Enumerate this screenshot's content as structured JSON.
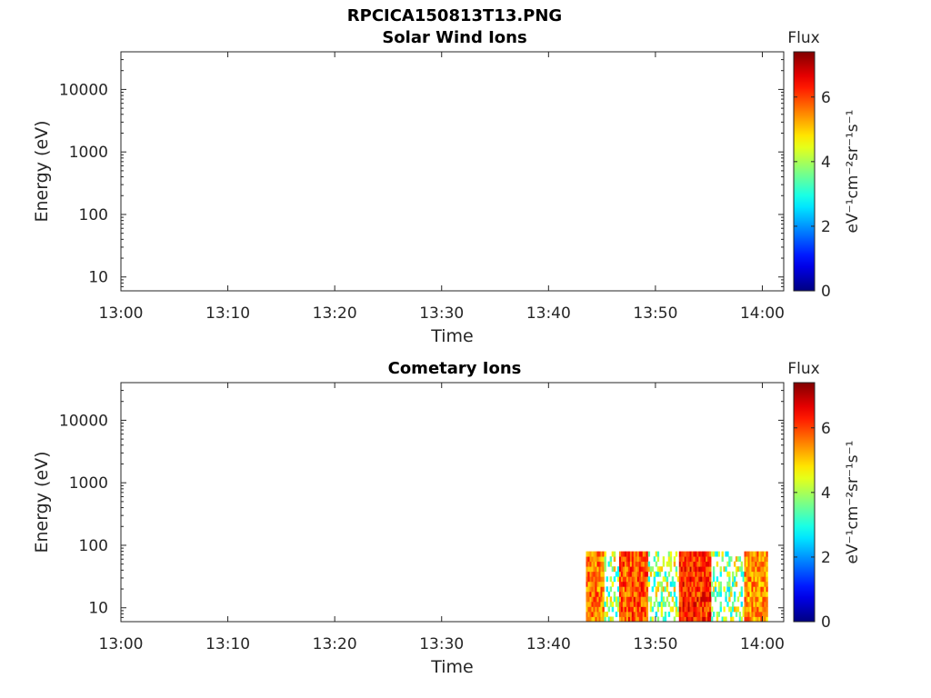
{
  "figure": {
    "title": "RPCICA150813T13.PNG"
  },
  "chart_data": [
    {
      "type": "heatmap",
      "title": "Solar Wind Ions",
      "xlabel": "Time",
      "ylabel": "Energy (eV)",
      "x_tick_labels": [
        "13:00",
        "13:10",
        "13:20",
        "13:30",
        "13:40",
        "13:50",
        "14:00"
      ],
      "xlim_minutes": [
        0,
        62
      ],
      "y_scale": "log",
      "y_tick_labels": [
        "10",
        "100",
        "1000",
        "10000"
      ],
      "ylim": [
        6,
        40000
      ],
      "colorbar": {
        "title": "Flux",
        "label": "eV⁻¹cm⁻²sr⁻¹s⁻¹",
        "ticks": [
          "0",
          "2",
          "4",
          "6"
        ],
        "range": [
          0,
          7.4
        ],
        "colormap": "jet"
      },
      "data": []
    },
    {
      "type": "heatmap",
      "title": "Cometary Ions",
      "xlabel": "Time",
      "ylabel": "Energy (eV)",
      "x_tick_labels": [
        "13:00",
        "13:10",
        "13:20",
        "13:30",
        "13:40",
        "13:50",
        "14:00"
      ],
      "xlim_minutes": [
        0,
        62
      ],
      "y_scale": "log",
      "y_tick_labels": [
        "10",
        "100",
        "1000",
        "10000"
      ],
      "ylim": [
        6,
        40000
      ],
      "colorbar": {
        "title": "Flux",
        "label": "eV⁻¹cm⁻²sr⁻¹s⁻¹",
        "ticks": [
          "0",
          "2",
          "4",
          "6"
        ],
        "range": [
          0,
          7.4
        ],
        "colormap": "jet"
      },
      "data": {
        "description_energy_range_eV": [
          6,
          80
        ],
        "time_range_minutes": [
          43.5,
          60.5
        ],
        "bands": [
          {
            "t0": 43.5,
            "t1": 45.2,
            "flux": 5.6
          },
          {
            "t0": 45.2,
            "t1": 46.6,
            "flux": 4.6,
            "sparse": true
          },
          {
            "t0": 46.6,
            "t1": 49.3,
            "flux": 5.9
          },
          {
            "t0": 49.3,
            "t1": 52.2,
            "flux": 4.3,
            "sparse": true
          },
          {
            "t0": 52.2,
            "t1": 55.2,
            "flux": 6.2
          },
          {
            "t0": 55.2,
            "t1": 58.3,
            "flux": 3.6,
            "sparse": true
          },
          {
            "t0": 58.3,
            "t1": 60.5,
            "flux": 5.4
          }
        ]
      }
    }
  ]
}
